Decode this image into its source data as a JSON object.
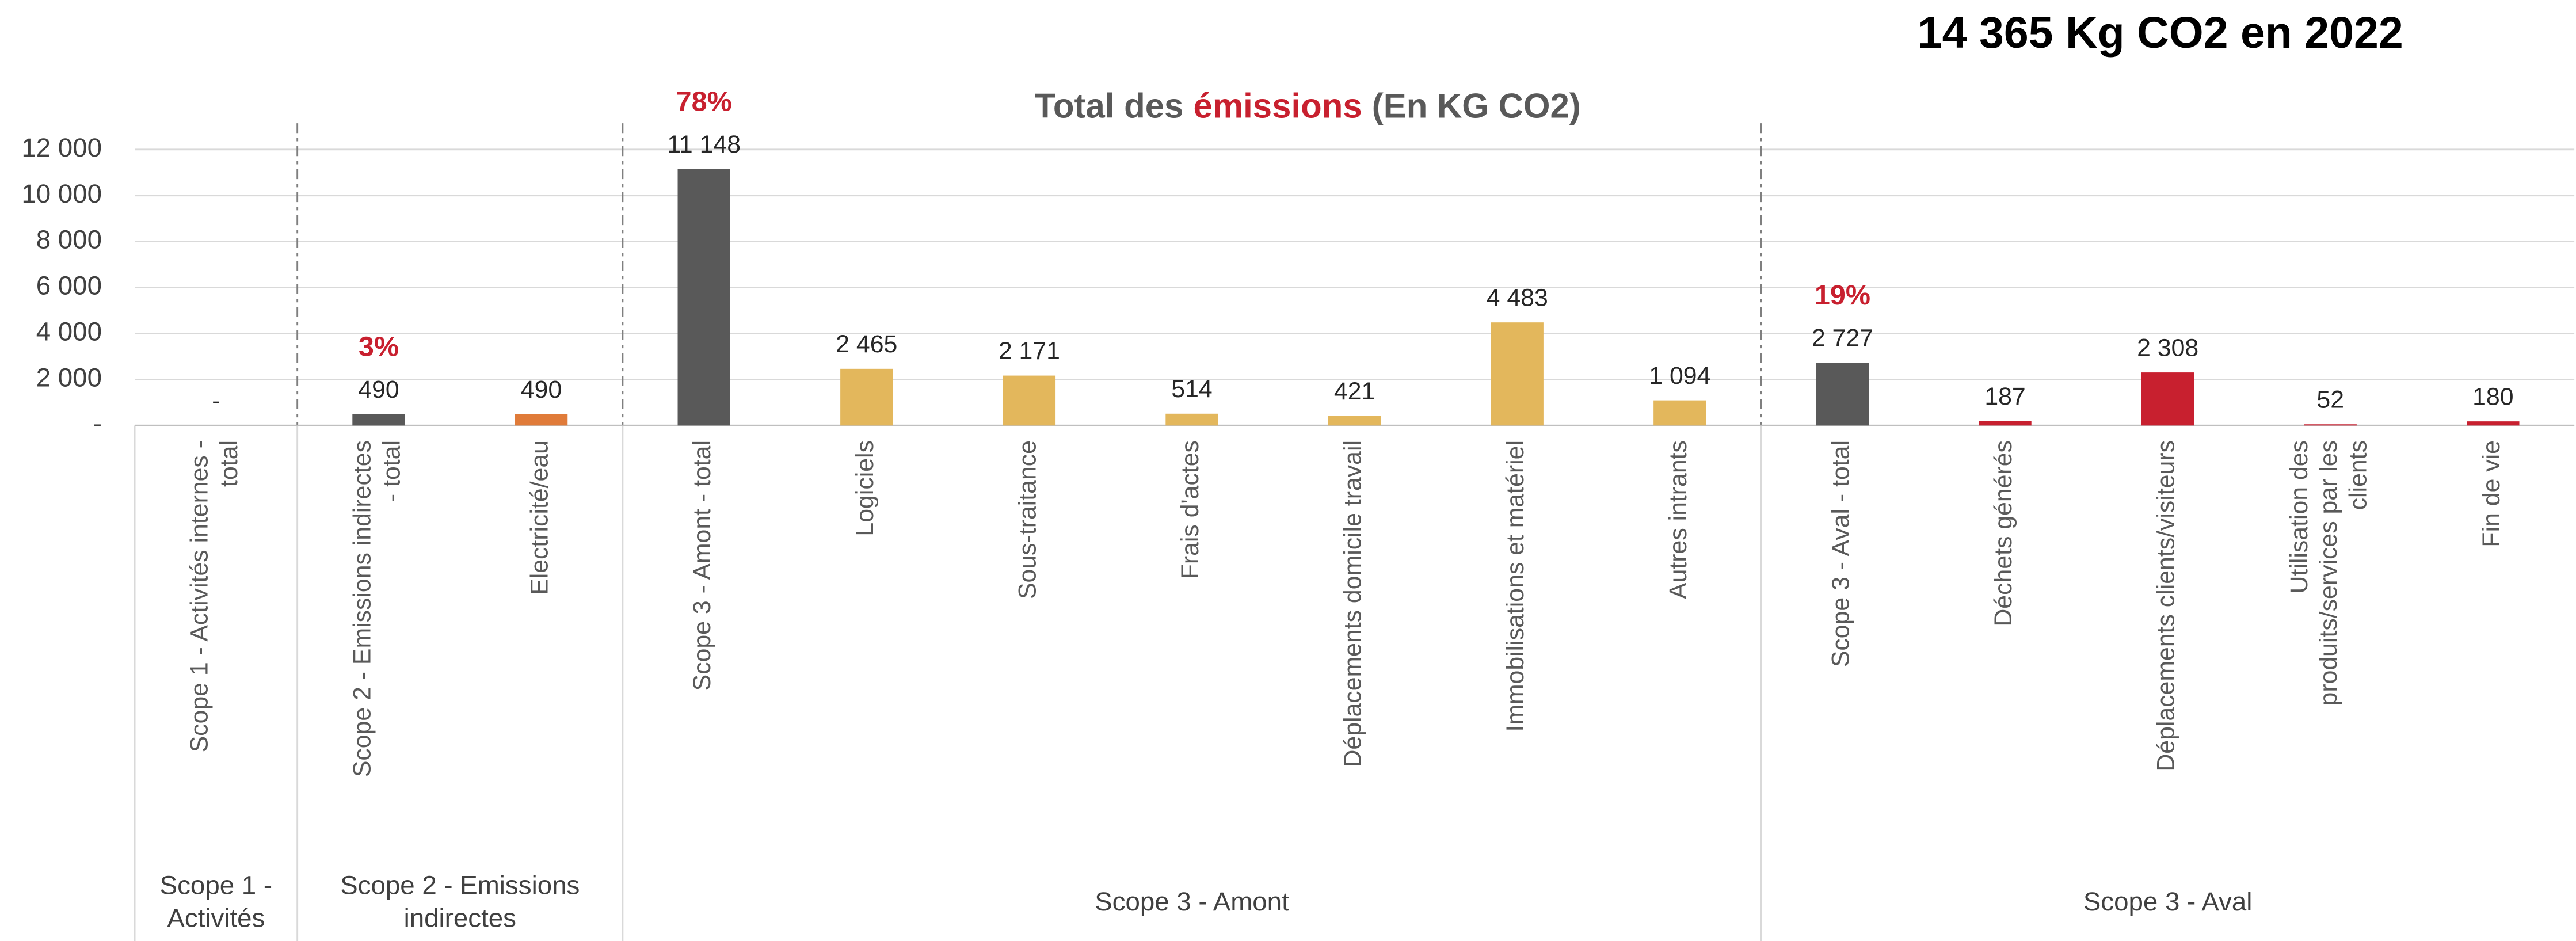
{
  "header": "14 365 Kg CO2 en 2022",
  "chart_data": {
    "type": "bar",
    "title_parts": [
      "Total des",
      "émissions",
      "(En KG CO2)"
    ],
    "categories": [
      "Scope 1 - Activités internes - total",
      "Scope 2 - Emissions indirectes - total",
      "Electricité/eau",
      "Scope 3 - Amont - total",
      "Logiciels",
      "Sous-traitance",
      "Frais d'actes",
      "Déplacements domicile travail",
      "Immobilisations et matériel",
      "Autres intrants",
      "Scope 3 - Aval - total",
      "Déchets générés",
      "Déplacements clients/visiteurs",
      "Utilisation des produits/services par les clients",
      "Fin de vie"
    ],
    "values": [
      0,
      490,
      490,
      11148,
      2465,
      2171,
      514,
      421,
      4483,
      1094,
      2727,
      187,
      2308,
      52,
      180
    ],
    "value_labels": [
      "-",
      "490",
      "490",
      "11 148",
      "2 465",
      "2 171",
      "514",
      "421",
      "4 483",
      "1 094",
      "2 727",
      "187",
      "2 308",
      "52",
      "180"
    ],
    "colors": [
      "#595959",
      "#595959",
      "#e07b39",
      "#595959",
      "#e3b75c",
      "#e3b75c",
      "#e3b75c",
      "#e3b75c",
      "#e3b75c",
      "#e3b75c",
      "#595959",
      "#c8202f",
      "#c8202f",
      "#c8202f",
      "#c8202f"
    ],
    "percent_labels": [
      null,
      "3%",
      null,
      "78%",
      null,
      null,
      null,
      null,
      null,
      null,
      "19%",
      null,
      null,
      null,
      null
    ],
    "groups": [
      {
        "name": "Scope 1 - Activités",
        "size": 1
      },
      {
        "name": "Scope 2 - Emissions indirectes",
        "size": 2
      },
      {
        "name": "Scope 3 - Amont",
        "size": 7
      },
      {
        "name": "Scope 3 - Aval",
        "size": 5
      }
    ],
    "ylim": [
      0,
      12000
    ],
    "yticks": [
      {
        "value": 0,
        "label": "-"
      },
      {
        "value": 2000,
        "label": "2 000"
      },
      {
        "value": 4000,
        "label": "4 000"
      },
      {
        "value": 6000,
        "label": "6 000"
      },
      {
        "value": 8000,
        "label": "8 000"
      },
      {
        "value": 10000,
        "label": "10 000"
      },
      {
        "value": 12000,
        "label": "12 000"
      }
    ],
    "grid": true
  }
}
